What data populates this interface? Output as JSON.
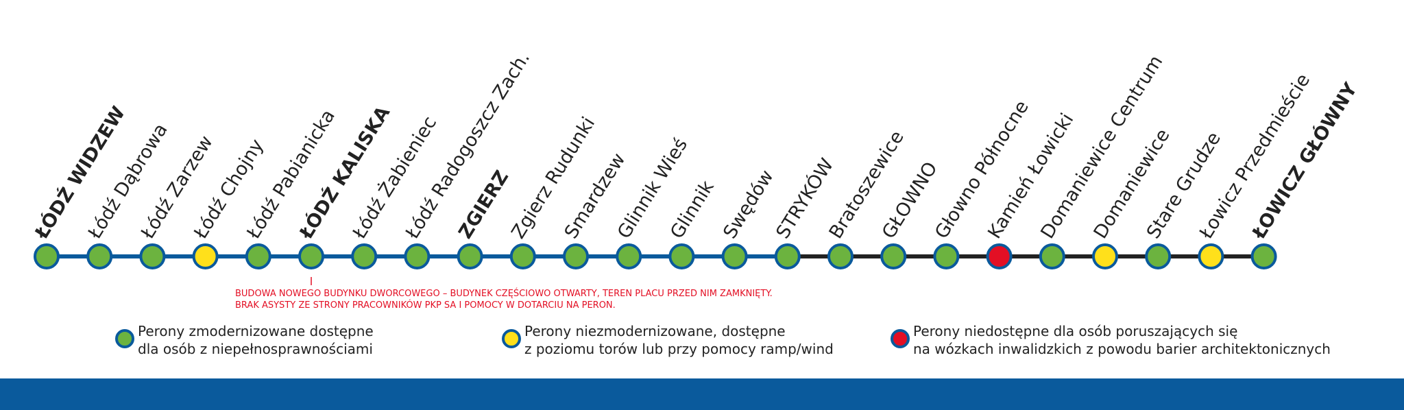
{
  "stations": [
    {
      "name": "ŁÓDŹ WIDZEW",
      "bold": true,
      "color": "#6cb33f"
    },
    {
      "name": "Łódź Dąbrowa",
      "bold": false,
      "color": "#6cb33f"
    },
    {
      "name": "Łódź Zarzew",
      "bold": false,
      "color": "#6cb33f"
    },
    {
      "name": "Łódź Chojny",
      "bold": false,
      "color": "#ffe01b"
    },
    {
      "name": "Łódź Pabianicka",
      "bold": false,
      "color": "#6cb33f"
    },
    {
      "name": "ŁÓDŹ KALISKA",
      "bold": true,
      "color": "#6cb33f"
    },
    {
      "name": "Łódź Żabieniec",
      "bold": false,
      "color": "#6cb33f"
    },
    {
      "name": "Łódź Radogoszcz Zach.",
      "bold": false,
      "color": "#6cb33f"
    },
    {
      "name": "ZGIERZ",
      "bold": true,
      "color": "#6cb33f"
    },
    {
      "name": "Zgierz Rudunki",
      "bold": false,
      "color": "#6cb33f"
    },
    {
      "name": "Smardzew",
      "bold": false,
      "color": "#6cb33f"
    },
    {
      "name": "Glinnik Wieś",
      "bold": false,
      "color": "#6cb33f"
    },
    {
      "name": "Glinnik",
      "bold": false,
      "color": "#6cb33f"
    },
    {
      "name": "Swędów",
      "bold": false,
      "color": "#6cb33f"
    },
    {
      "name": "STRYKÓW",
      "bold": false,
      "color": "#6cb33f"
    },
    {
      "name": "Bratoszewice",
      "bold": false,
      "color": "#6cb33f"
    },
    {
      "name": "GŁOWNO",
      "bold": false,
      "color": "#6cb33f"
    },
    {
      "name": "Głowno Północne",
      "bold": false,
      "color": "#6cb33f"
    },
    {
      "name": "Kamień Łowicki",
      "bold": false,
      "color": "#e30f24"
    },
    {
      "name": "Domaniewice Centrum",
      "bold": false,
      "color": "#6cb33f"
    },
    {
      "name": "Domaniewice",
      "bold": false,
      "color": "#ffe01b"
    },
    {
      "name": "Stare Grudze",
      "bold": false,
      "color": "#6cb33f"
    },
    {
      "name": "Łowicz Przedmieście",
      "bold": false,
      "color": "#ffe01b"
    },
    {
      "name": "ŁOWICZ GŁÓWNY",
      "bold": true,
      "color": "#6cb33f"
    }
  ],
  "track": [
    {
      "from": 0,
      "to": 14,
      "color": "#0a5a9c"
    },
    {
      "from": 14,
      "to": 23,
      "color": "#222222"
    }
  ],
  "note": {
    "station": 5,
    "lines": [
      "BUDOWA NOWEGO BUDYNKU DWORCOWEGO – BUDYNEK CZĘŚCIOWO OTWARTY, TEREN PLACU PRZED NIM ZAMKNIĘTY.",
      "BRAK ASYSTY ZE STRONY PRACOWNIKÓW PKP SA I POMOCY W DOTARCIU NA PERON."
    ]
  },
  "legend": [
    {
      "color": "#6cb33f",
      "lines": [
        "Perony zmodernizowane dostępne",
        "dla osób z niepełnosprawnościami"
      ]
    },
    {
      "color": "#ffe01b",
      "lines": [
        "Perony niezmodernizowane, dostępne",
        "z poziomu torów lub przy pomocy ramp/wind"
      ]
    },
    {
      "color": "#e30f24",
      "lines": [
        "Perony niedostępne dla osób poruszających się",
        "na wózkach inwalidzkich z powodu barier architektonicznych"
      ]
    }
  ]
}
